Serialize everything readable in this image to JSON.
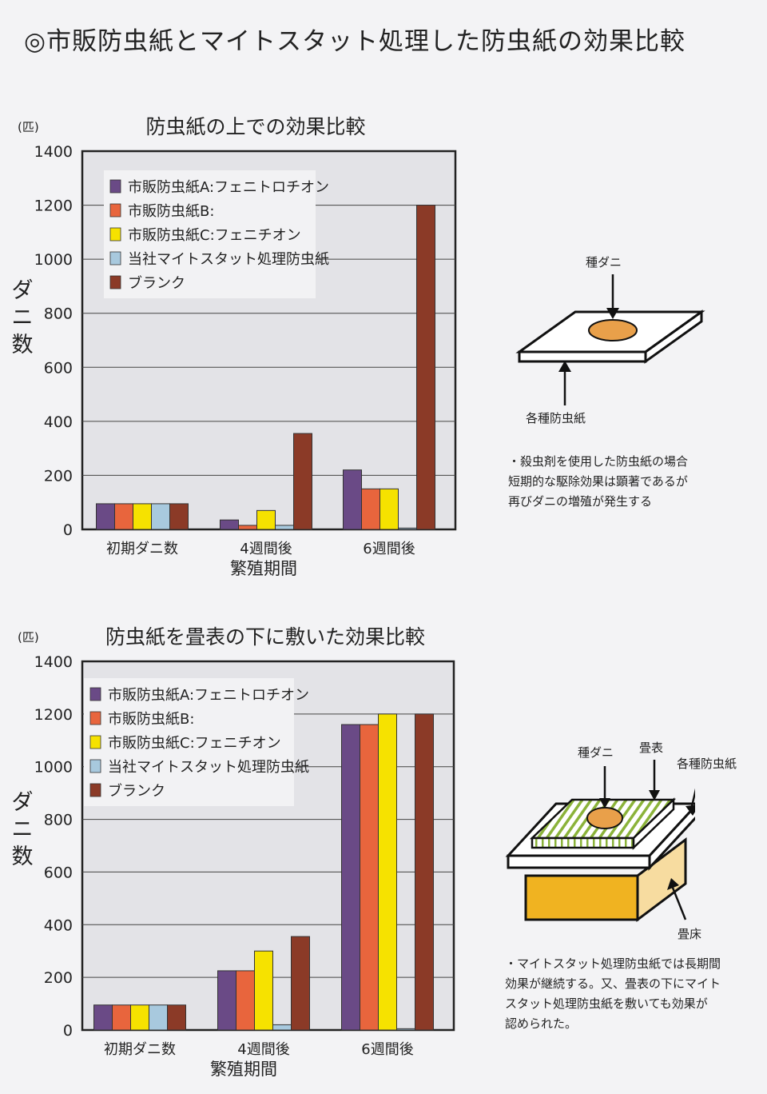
{
  "page_title": "◎市販防虫紙とマイトスタット処理した防虫紙の効果比較",
  "colors": {
    "series": [
      "#6a4a86",
      "#e8653d",
      "#f6e200",
      "#a8c9de",
      "#8b3a27"
    ],
    "plot_bg": "#e3e3e7"
  },
  "chart_data": [
    {
      "type": "bar",
      "title": "防虫紙の上での効果比較",
      "unit_label": "(匹)",
      "ylabel": "ダニ数",
      "xlabel": "繁殖期間",
      "ylim": [
        0,
        1400
      ],
      "yticks": [
        "0",
        "200",
        "400",
        "600",
        "800",
        "1000",
        "1200",
        "1400"
      ],
      "grid": true,
      "legend_position": "top-left",
      "categories": [
        "初期ダニ数",
        "4週間後",
        "6週間後"
      ],
      "series": [
        {
          "name": "市販防虫紙A:フェニトロチオン",
          "values": [
            95,
            35,
            220
          ]
        },
        {
          "name": "市販防虫紙B:",
          "values": [
            95,
            15,
            150
          ]
        },
        {
          "name": "市販防虫紙C:フェニチオン",
          "values": [
            95,
            70,
            150
          ]
        },
        {
          "name": "当社マイトスタット処理防虫紙",
          "values": [
            95,
            15,
            5
          ]
        },
        {
          "name": "ブランク",
          "values": [
            95,
            355,
            1200
          ]
        }
      ]
    },
    {
      "type": "bar",
      "title": "防虫紙を畳表の下に敷いた効果比較",
      "unit_label": "(匹)",
      "ylabel": "ダニ数",
      "xlabel": "繁殖期間",
      "ylim": [
        0,
        1400
      ],
      "yticks": [
        "0",
        "200",
        "400",
        "600",
        "800",
        "1000",
        "1200",
        "1400"
      ],
      "grid": true,
      "legend_position": "top-left",
      "categories": [
        "初期ダニ数",
        "4週間後",
        "6週間後"
      ],
      "series": [
        {
          "name": "市販防虫紙A:フェニトロチオン",
          "values": [
            95,
            225,
            1160
          ]
        },
        {
          "name": "市販防虫紙B:",
          "values": [
            95,
            225,
            1160
          ]
        },
        {
          "name": "市販防虫紙C:フェニチオン",
          "values": [
            95,
            300,
            1200
          ]
        },
        {
          "name": "当社マイトスタット処理防虫紙",
          "values": [
            95,
            20,
            5
          ]
        },
        {
          "name": "ブランク",
          "values": [
            95,
            355,
            1200
          ]
        }
      ]
    }
  ],
  "diagram1": {
    "label_mite": "種ダニ",
    "label_paper": "各種防虫紙",
    "note": [
      "・殺虫剤を使用した防虫紙の場合",
      "短期的な駆除効果は顕著であるが",
      "再びダニの増殖が発生する"
    ]
  },
  "diagram2": {
    "label_mite": "種ダニ",
    "label_tatami_surface": "畳表",
    "label_paper": "各種防虫紙",
    "label_tatami_floor": "畳床",
    "note": [
      "・マイトスタット処理防虫紙では長期間",
      "効果が継続する。又、畳表の下にマイト",
      "スタット処理防虫紙を敷いても効果が",
      "認められた。"
    ]
  }
}
